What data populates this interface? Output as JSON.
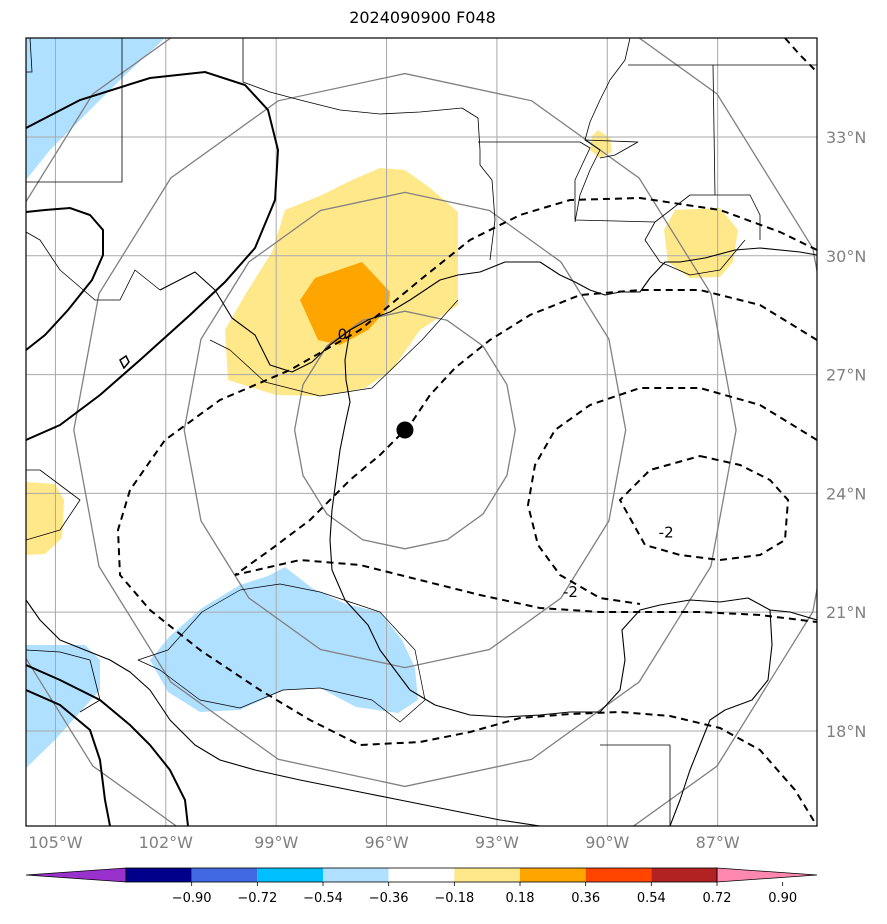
{
  "title": "2024090900 F048",
  "map": {
    "lon_range": [
      -105.8,
      -84.3
    ],
    "lat_range": [
      15.6,
      35.5
    ],
    "lon_ticks": [
      {
        "value": -105,
        "label": "105°W"
      },
      {
        "value": -102,
        "label": "102°W"
      },
      {
        "value": -99,
        "label": "99°W"
      },
      {
        "value": -96,
        "label": "96°W"
      },
      {
        "value": -93,
        "label": "93°W"
      },
      {
        "value": -90,
        "label": "90°W"
      },
      {
        "value": -87,
        "label": "87°W"
      }
    ],
    "lat_ticks": [
      {
        "value": 33,
        "label": "33°N"
      },
      {
        "value": 30,
        "label": "30°N"
      },
      {
        "value": 27,
        "label": "27°N"
      },
      {
        "value": 24,
        "label": "24°N"
      },
      {
        "value": 21,
        "label": "21°N"
      },
      {
        "value": 18,
        "label": "18°N"
      }
    ],
    "center": {
      "lon": -95.5,
      "lat": 25.6
    },
    "range_ring_radii_deg": [
      3,
      6,
      9,
      12
    ],
    "contour_labels": [
      {
        "text": "-2",
        "lon": -88.4,
        "lat": 23.0
      },
      {
        "text": "-2",
        "lon": -91.0,
        "lat": 21.5
      },
      {
        "text": "0",
        "lon": -97.2,
        "lat": 28.0
      }
    ],
    "grid": true
  },
  "colorbar": {
    "colors": [
      "#9932cc",
      "#00008b",
      "#4169e1",
      "#00bfff",
      "#b0e0ff",
      "#ffffff",
      "#ffe88a",
      "#ffa500",
      "#ff4500",
      "#b22222",
      "#ff88b0"
    ],
    "labels": [
      "−0.90",
      "−0.72",
      "−0.54",
      "−0.36",
      "−0.18",
      "0.18",
      "0.36",
      "0.54",
      "0.72",
      "0.90"
    ]
  },
  "colors": {
    "light_yellow": "#ffe88a",
    "orange": "#ffa500",
    "light_blue": "#b0e0ff",
    "grid": "#a9a9a9",
    "ring": "#808080"
  }
}
